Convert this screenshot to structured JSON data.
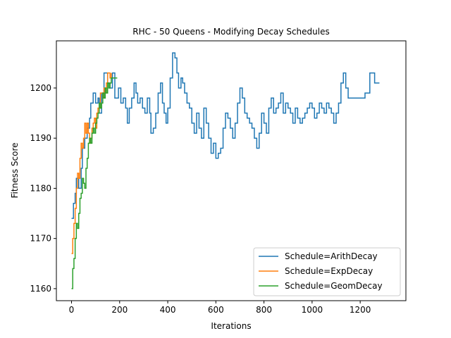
{
  "chart_data": {
    "type": "line",
    "title": "RHC - 50 Queens - Modifying Decay Schedules",
    "xlabel": "Iterations",
    "ylabel": "Fitness Score",
    "xlim": [
      -63,
      1390
    ],
    "ylim": [
      1157.6,
      1209.4
    ],
    "xticks": [
      0,
      200,
      400,
      600,
      800,
      1000,
      1200
    ],
    "yticks": [
      1160,
      1170,
      1180,
      1190,
      1200
    ],
    "legend_position": "lower-right",
    "grid": false,
    "series": [
      {
        "name": "Schedule=ArithDecay",
        "color": "#1f77b4",
        "points": [
          [
            0,
            1174
          ],
          [
            8,
            1177
          ],
          [
            15,
            1179
          ],
          [
            20,
            1182
          ],
          [
            30,
            1180
          ],
          [
            40,
            1184
          ],
          [
            45,
            1188
          ],
          [
            55,
            1190
          ],
          [
            65,
            1192
          ],
          [
            75,
            1194
          ],
          [
            80,
            1197
          ],
          [
            90,
            1199
          ],
          [
            100,
            1197
          ],
          [
            110,
            1198
          ],
          [
            115,
            1195
          ],
          [
            125,
            1199
          ],
          [
            135,
            1203
          ],
          [
            150,
            1201
          ],
          [
            160,
            1200
          ],
          [
            170,
            1203
          ],
          [
            180,
            1198
          ],
          [
            195,
            1200
          ],
          [
            205,
            1197
          ],
          [
            215,
            1198
          ],
          [
            225,
            1196
          ],
          [
            232,
            1193
          ],
          [
            240,
            1196
          ],
          [
            250,
            1198
          ],
          [
            260,
            1201
          ],
          [
            268,
            1199
          ],
          [
            275,
            1197
          ],
          [
            285,
            1198
          ],
          [
            295,
            1196
          ],
          [
            305,
            1195
          ],
          [
            315,
            1198
          ],
          [
            325,
            1195
          ],
          [
            330,
            1191
          ],
          [
            340,
            1192
          ],
          [
            350,
            1195
          ],
          [
            360,
            1199
          ],
          [
            370,
            1201
          ],
          [
            378,
            1197
          ],
          [
            385,
            1195
          ],
          [
            393,
            1193
          ],
          [
            400,
            1196
          ],
          [
            410,
            1202
          ],
          [
            420,
            1207
          ],
          [
            430,
            1206
          ],
          [
            438,
            1203
          ],
          [
            445,
            1200
          ],
          [
            455,
            1202
          ],
          [
            462,
            1201
          ],
          [
            470,
            1199
          ],
          [
            480,
            1197
          ],
          [
            490,
            1196
          ],
          [
            500,
            1193
          ],
          [
            510,
            1191
          ],
          [
            520,
            1195
          ],
          [
            530,
            1192
          ],
          [
            540,
            1190
          ],
          [
            550,
            1196
          ],
          [
            560,
            1193
          ],
          [
            570,
            1190
          ],
          [
            580,
            1187
          ],
          [
            590,
            1189
          ],
          [
            600,
            1186
          ],
          [
            610,
            1187
          ],
          [
            620,
            1188
          ],
          [
            630,
            1192
          ],
          [
            640,
            1195
          ],
          [
            650,
            1194
          ],
          [
            660,
            1192
          ],
          [
            670,
            1190
          ],
          [
            680,
            1193
          ],
          [
            690,
            1197
          ],
          [
            700,
            1200
          ],
          [
            710,
            1198
          ],
          [
            720,
            1195
          ],
          [
            730,
            1194
          ],
          [
            740,
            1193
          ],
          [
            750,
            1192
          ],
          [
            760,
            1190
          ],
          [
            770,
            1188
          ],
          [
            780,
            1191
          ],
          [
            790,
            1195
          ],
          [
            800,
            1193
          ],
          [
            810,
            1191
          ],
          [
            820,
            1196
          ],
          [
            830,
            1198
          ],
          [
            840,
            1195
          ],
          [
            850,
            1196
          ],
          [
            860,
            1197
          ],
          [
            870,
            1199
          ],
          [
            880,
            1195
          ],
          [
            890,
            1197
          ],
          [
            900,
            1196
          ],
          [
            910,
            1195
          ],
          [
            920,
            1193
          ],
          [
            930,
            1196
          ],
          [
            940,
            1194
          ],
          [
            950,
            1193
          ],
          [
            960,
            1194
          ],
          [
            970,
            1195
          ],
          [
            980,
            1196
          ],
          [
            990,
            1197
          ],
          [
            1000,
            1196
          ],
          [
            1010,
            1194
          ],
          [
            1020,
            1195
          ],
          [
            1030,
            1197
          ],
          [
            1040,
            1196
          ],
          [
            1050,
            1195
          ],
          [
            1060,
            1197
          ],
          [
            1070,
            1196
          ],
          [
            1080,
            1195
          ],
          [
            1090,
            1193
          ],
          [
            1100,
            1195
          ],
          [
            1110,
            1197
          ],
          [
            1120,
            1201
          ],
          [
            1130,
            1203
          ],
          [
            1140,
            1200
          ],
          [
            1150,
            1198
          ],
          [
            1160,
            1198
          ],
          [
            1180,
            1198
          ],
          [
            1200,
            1198
          ],
          [
            1220,
            1199
          ],
          [
            1240,
            1203
          ],
          [
            1260,
            1201
          ],
          [
            1270,
            1201
          ],
          [
            1280,
            1201
          ]
        ]
      },
      {
        "name": "Schedule=ExpDecay",
        "color": "#ff7f0e",
        "points": [
          [
            0,
            1167
          ],
          [
            5,
            1170
          ],
          [
            10,
            1173
          ],
          [
            15,
            1176
          ],
          [
            20,
            1180
          ],
          [
            25,
            1183
          ],
          [
            30,
            1182
          ],
          [
            35,
            1186
          ],
          [
            40,
            1189
          ],
          [
            45,
            1188
          ],
          [
            50,
            1190
          ],
          [
            55,
            1193
          ],
          [
            60,
            1191
          ],
          [
            65,
            1193
          ],
          [
            70,
            1191
          ],
          [
            75,
            1189
          ],
          [
            80,
            1190
          ],
          [
            85,
            1192
          ],
          [
            90,
            1193
          ],
          [
            95,
            1194
          ],
          [
            100,
            1192
          ],
          [
            105,
            1195
          ],
          [
            110,
            1196
          ],
          [
            115,
            1196
          ],
          [
            120,
            1199
          ],
          [
            125,
            1199
          ],
          [
            130,
            1198
          ],
          [
            135,
            1200
          ],
          [
            140,
            1199
          ],
          [
            145,
            1201
          ],
          [
            150,
            1203
          ],
          [
            155,
            1203
          ],
          [
            160,
            1202
          ],
          [
            165,
            1203
          ]
        ]
      },
      {
        "name": "Schedule=GeomDecay",
        "color": "#2ca02c",
        "points": [
          [
            0,
            1160
          ],
          [
            5,
            1164
          ],
          [
            10,
            1166
          ],
          [
            15,
            1170
          ],
          [
            20,
            1173
          ],
          [
            25,
            1172
          ],
          [
            30,
            1175
          ],
          [
            35,
            1178
          ],
          [
            40,
            1179
          ],
          [
            45,
            1182
          ],
          [
            50,
            1181
          ],
          [
            55,
            1180
          ],
          [
            60,
            1184
          ],
          [
            65,
            1186
          ],
          [
            70,
            1189
          ],
          [
            75,
            1190
          ],
          [
            80,
            1189
          ],
          [
            85,
            1191
          ],
          [
            90,
            1192
          ],
          [
            95,
            1191
          ],
          [
            100,
            1193
          ],
          [
            105,
            1194
          ],
          [
            110,
            1195
          ],
          [
            115,
            1197
          ],
          [
            120,
            1196
          ],
          [
            125,
            1197
          ],
          [
            130,
            1199
          ],
          [
            135,
            1198
          ],
          [
            140,
            1200
          ],
          [
            145,
            1199
          ],
          [
            150,
            1201
          ],
          [
            155,
            1200
          ],
          [
            160,
            1201
          ],
          [
            165,
            1202
          ],
          [
            170,
            1202
          ],
          [
            175,
            1202
          ],
          [
            180,
            1202
          ],
          [
            185,
            1202
          ],
          [
            190,
            1202
          ]
        ]
      }
    ]
  }
}
